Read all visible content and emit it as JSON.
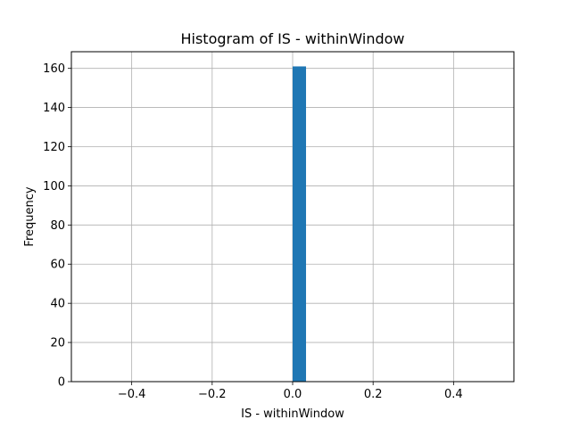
{
  "chart_data": {
    "type": "bar",
    "title": "Histogram of IS - withinWindow",
    "xlabel": "IS - withinWindow",
    "ylabel": "Frequency",
    "xlim": [
      -0.55,
      0.55
    ],
    "ylim": [
      0,
      168.5
    ],
    "x_ticks": [
      -0.4,
      -0.2,
      0.0,
      0.2,
      0.4
    ],
    "x_tick_labels": [
      "−0.4",
      "−0.2",
      "0.0",
      "0.2",
      "0.4"
    ],
    "y_ticks": [
      0,
      20,
      40,
      60,
      80,
      100,
      120,
      140,
      160
    ],
    "y_tick_labels": [
      "0",
      "20",
      "40",
      "60",
      "80",
      "100",
      "120",
      "140",
      "160"
    ],
    "grid": true,
    "color": "#1f77b4",
    "bins": [
      {
        "x_start": 0.0,
        "x_end": 0.0333,
        "count": 161
      }
    ]
  }
}
